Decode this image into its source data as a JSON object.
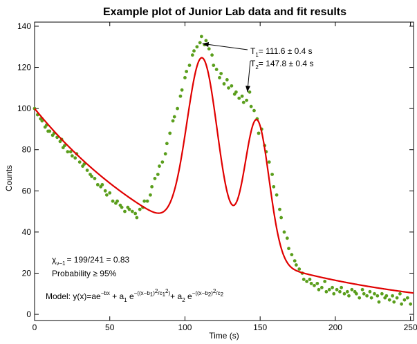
{
  "chart_data": {
    "type": "scatter",
    "title": "Example plot of Junior Lab data and fit results",
    "xlabel": "Time (s)",
    "ylabel": "Counts",
    "xlim": [
      0,
      252
    ],
    "ylim": [
      -3,
      142
    ],
    "xticks": [
      "0",
      "50",
      "100",
      "150",
      "200",
      "250"
    ],
    "yticks": [
      "0",
      "20",
      "40",
      "60",
      "80",
      "100",
      "120",
      "140"
    ],
    "grid": false,
    "colors": {
      "data": "#5a9e1c",
      "fit": "#e00000"
    },
    "series": [
      {
        "kind": "points",
        "x": [
          0,
          2,
          4,
          5,
          7,
          8,
          9,
          10,
          12,
          13,
          15,
          17,
          18,
          19,
          20,
          22,
          24,
          25,
          27,
          28,
          30,
          32,
          33,
          35,
          37,
          38,
          40,
          42,
          44,
          45,
          47,
          48,
          50,
          52,
          54,
          55,
          57,
          58,
          60,
          62,
          63,
          65,
          67,
          68,
          70,
          72,
          73,
          75,
          77,
          78,
          80,
          82,
          83,
          85,
          87,
          88,
          90,
          92,
          93,
          95,
          97,
          98,
          100,
          101,
          103,
          105,
          106,
          108,
          110,
          111,
          113,
          114,
          116,
          118,
          119,
          121,
          123,
          124,
          126,
          128,
          129,
          131,
          133,
          134,
          136,
          138,
          139,
          141,
          143,
          144,
          146,
          148,
          149,
          151,
          153,
          154,
          156,
          158,
          159,
          161,
          163,
          164,
          166,
          168,
          169,
          171,
          173,
          174,
          176,
          178,
          179,
          181,
          183,
          184,
          186,
          188,
          189,
          191,
          193,
          194,
          196,
          198,
          199,
          201,
          203,
          204,
          206,
          208,
          209,
          211,
          213,
          214,
          216,
          218,
          219,
          221,
          223,
          224,
          226,
          228,
          229,
          231,
          233,
          234,
          236,
          238,
          239,
          241,
          243,
          244,
          246,
          248,
          250
        ],
        "y": [
          100,
          97,
          95,
          94,
          91,
          92,
          89,
          89,
          87,
          88,
          86,
          84,
          85,
          81,
          82,
          79,
          79,
          77,
          76,
          78,
          74,
          72,
          73,
          70,
          68,
          67,
          66,
          63,
          62,
          63,
          60,
          58,
          59,
          55,
          54,
          55,
          53,
          52,
          50,
          52,
          51,
          50,
          49,
          47,
          51,
          52,
          55,
          55,
          58,
          62,
          66,
          68,
          72,
          74,
          78,
          83,
          88,
          94,
          96,
          100,
          106,
          109,
          115,
          118,
          121,
          126,
          128,
          130,
          132,
          135,
          131,
          133,
          129,
          126,
          121,
          119,
          115,
          117,
          112,
          114,
          110,
          111,
          107,
          108,
          105,
          106,
          103,
          104,
          108,
          101,
          99,
          95,
          88,
          90,
          82,
          79,
          74,
          68,
          62,
          58,
          51,
          47,
          40,
          37,
          32,
          29,
          26,
          24,
          22,
          20,
          17,
          16,
          17,
          15,
          14,
          15,
          12,
          13,
          16,
          11,
          12,
          13,
          10,
          12,
          11,
          13,
          10,
          11,
          9,
          12,
          11,
          10,
          8,
          12,
          10,
          9,
          11,
          8,
          10,
          9,
          6,
          10,
          8,
          9,
          7,
          9,
          6,
          8,
          10,
          5,
          7,
          8,
          5
        ]
      },
      {
        "kind": "fit",
        "model": {
          "a": 100,
          "b": 0.009,
          "a1": 88,
          "b1": 111.6,
          "c1": 14.5,
          "a2": 68,
          "b2": 147.8,
          "c2": 11.5
        }
      }
    ],
    "annotations": {
      "t1": {
        "main": "T",
        "sub": "1",
        "rest": "= 111.6 ± 0.4 s",
        "target_x": 111.6,
        "target_y": 131.5
      },
      "t2": {
        "main": "T",
        "sub": "2",
        "rest": "= 147.8 ± 0.4 s",
        "target_x": 141.5,
        "target_y": 108
      },
      "chi": {
        "main": "χ",
        "sub": "ν−1",
        "rest": "= 199/241 = 0.83"
      },
      "probability": "Probability ≥ 95%",
      "model": {
        "prefix": "Model: y(x)=ae",
        "exp1": "−bx",
        "part2": " + a",
        "sub_a1": "1",
        "part2b": " e",
        "exp2": "−((x−b",
        "exp2_sub1": "1",
        "exp2_mid": ")",
        "exp2_sup2": "2",
        "exp2_slash": "/c",
        "exp2_sub_c1": "1",
        "exp2_sup_c": "2",
        "exp2_close": ")",
        "part3": "+ a",
        "sub_a2": "2",
        "part3b": " e",
        "exp3": "−((x−b",
        "exp3_sub2": "2",
        "exp3_mid": ")",
        "exp3_sup2": "2",
        "exp3_slash": "/c",
        "exp3_sub_c2": "2"
      }
    }
  }
}
